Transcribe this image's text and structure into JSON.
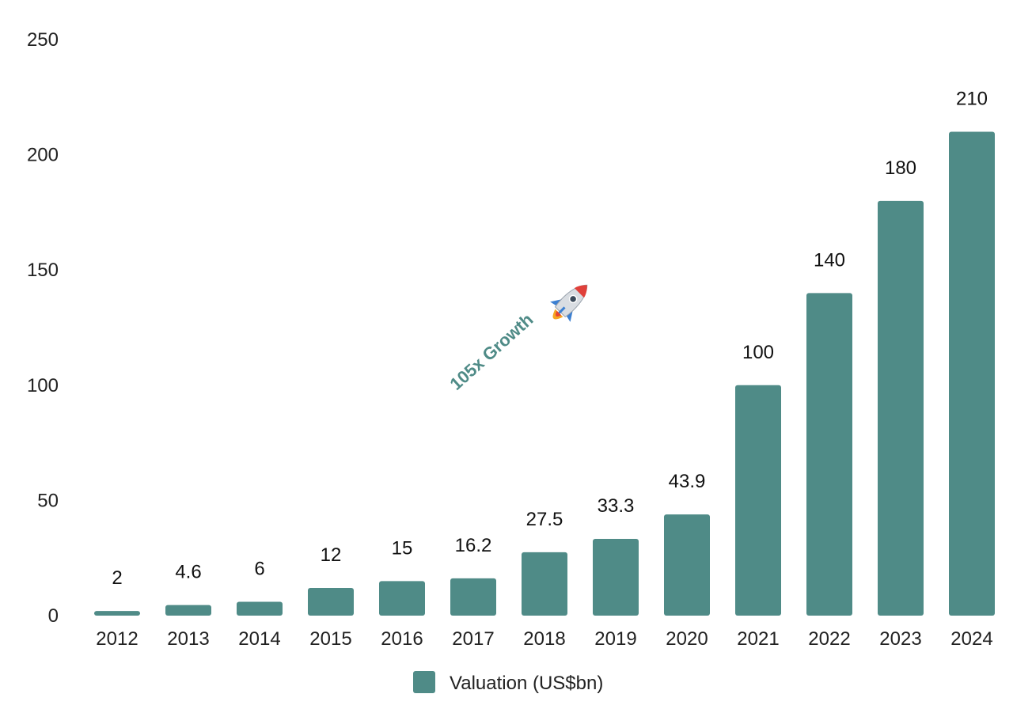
{
  "chart_data": {
    "type": "bar",
    "categories": [
      "2012",
      "2013",
      "2014",
      "2015",
      "2016",
      "2017",
      "2018",
      "2019",
      "2020",
      "2021",
      "2022",
      "2023",
      "2024"
    ],
    "series": [
      {
        "name": "Valuation (US$bn)",
        "values": [
          2,
          4.6,
          6,
          12,
          15,
          16.2,
          27.5,
          33.3,
          43.9,
          100,
          140,
          180,
          210
        ]
      }
    ],
    "data_labels": [
      "2",
      "4.6",
      "6",
      "12",
      "15",
      "16.2",
      "27.5",
      "33.3",
      "43.9",
      "100",
      "140",
      "180",
      "210"
    ],
    "y_ticks": [
      0,
      50,
      100,
      150,
      200,
      250
    ],
    "ylim": [
      0,
      250
    ],
    "title": "",
    "xlabel": "",
    "ylabel": "",
    "grid": false,
    "legend_position": "bottom-center",
    "bar_color": "#4f8b87",
    "annotation": {
      "text": "105x Growth",
      "icon": "rocket-icon"
    }
  }
}
